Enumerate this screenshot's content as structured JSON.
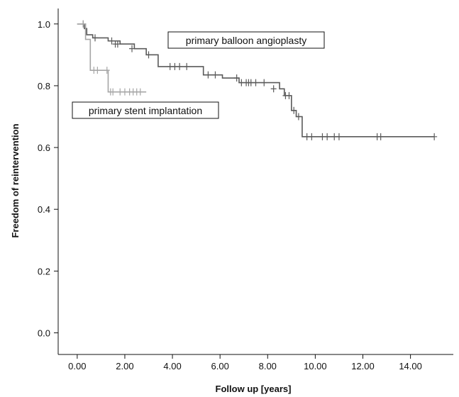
{
  "chart_data": {
    "type": "line",
    "subtype": "kaplan-meier step curve with censoring marks",
    "xlabel": "Follow up [years]",
    "ylabel": "Freedom of reintervention",
    "xlim": [
      -0.8,
      15.8
    ],
    "ylim": [
      -0.07,
      1.05
    ],
    "x_ticks": [
      0,
      2,
      4,
      6,
      8,
      10,
      12,
      14
    ],
    "x_tick_labels": [
      "0.00",
      "2.00",
      "4.00",
      "6.00",
      "8.00",
      "10.00",
      "12.00",
      "14.00"
    ],
    "y_ticks": [
      0,
      0.2,
      0.4,
      0.6,
      0.8,
      1.0
    ],
    "y_tick_labels": [
      "0.0",
      "0.2",
      "0.4",
      "0.6",
      "0.8",
      "1.0"
    ],
    "grid": false,
    "legend": "none (inline text annotations)",
    "series": [
      {
        "name": "primary balloon angioplasty",
        "color": "#5a5a5a",
        "steps": [
          [
            0.0,
            1.0
          ],
          [
            0.3,
            0.985
          ],
          [
            0.4,
            0.965
          ],
          [
            0.65,
            0.955
          ],
          [
            1.3,
            0.945
          ],
          [
            1.8,
            0.935
          ],
          [
            2.4,
            0.92
          ],
          [
            2.9,
            0.9
          ],
          [
            3.4,
            0.862
          ],
          [
            5.3,
            0.835
          ],
          [
            6.1,
            0.825
          ],
          [
            6.8,
            0.81
          ],
          [
            8.5,
            0.79
          ],
          [
            8.7,
            0.768
          ],
          [
            9.0,
            0.72
          ],
          [
            9.2,
            0.7
          ],
          [
            9.45,
            0.635
          ],
          [
            15.0,
            0.635
          ]
        ],
        "censored": [
          [
            0.25,
            1.0
          ],
          [
            0.75,
            0.955
          ],
          [
            1.45,
            0.945
          ],
          [
            1.6,
            0.935
          ],
          [
            1.7,
            0.935
          ],
          [
            2.3,
            0.92
          ],
          [
            3.0,
            0.9
          ],
          [
            3.9,
            0.862
          ],
          [
            4.1,
            0.862
          ],
          [
            4.3,
            0.862
          ],
          [
            4.6,
            0.862
          ],
          [
            5.5,
            0.835
          ],
          [
            5.8,
            0.835
          ],
          [
            6.7,
            0.825
          ],
          [
            6.9,
            0.81
          ],
          [
            7.1,
            0.81
          ],
          [
            7.2,
            0.81
          ],
          [
            7.3,
            0.81
          ],
          [
            7.5,
            0.81
          ],
          [
            7.85,
            0.81
          ],
          [
            8.25,
            0.79
          ],
          [
            8.75,
            0.768
          ],
          [
            8.9,
            0.768
          ],
          [
            9.1,
            0.72
          ],
          [
            9.3,
            0.7
          ],
          [
            9.65,
            0.635
          ],
          [
            9.85,
            0.635
          ],
          [
            10.3,
            0.635
          ],
          [
            10.5,
            0.635
          ],
          [
            10.8,
            0.635
          ],
          [
            11.0,
            0.635
          ],
          [
            12.6,
            0.635
          ],
          [
            12.75,
            0.635
          ],
          [
            15.0,
            0.635
          ]
        ]
      },
      {
        "name": "primary stent implantation",
        "color": "#a6a6a6",
        "steps": [
          [
            0.0,
            1.0
          ],
          [
            0.35,
            0.95
          ],
          [
            0.55,
            0.85
          ],
          [
            1.3,
            0.78
          ],
          [
            2.9,
            0.78
          ]
        ],
        "censored": [
          [
            0.25,
            1.0
          ],
          [
            0.7,
            0.85
          ],
          [
            0.85,
            0.85
          ],
          [
            1.25,
            0.85
          ],
          [
            1.4,
            0.78
          ],
          [
            1.5,
            0.78
          ],
          [
            1.8,
            0.78
          ],
          [
            2.0,
            0.78
          ],
          [
            2.2,
            0.78
          ],
          [
            2.35,
            0.78
          ],
          [
            2.5,
            0.78
          ],
          [
            2.65,
            0.78
          ]
        ]
      }
    ],
    "annotations": [
      {
        "text": "primary balloon angioplasty",
        "series": "primary balloon angioplasty"
      },
      {
        "text": "primary stent implantation",
        "series": "primary stent implantation"
      }
    ]
  }
}
